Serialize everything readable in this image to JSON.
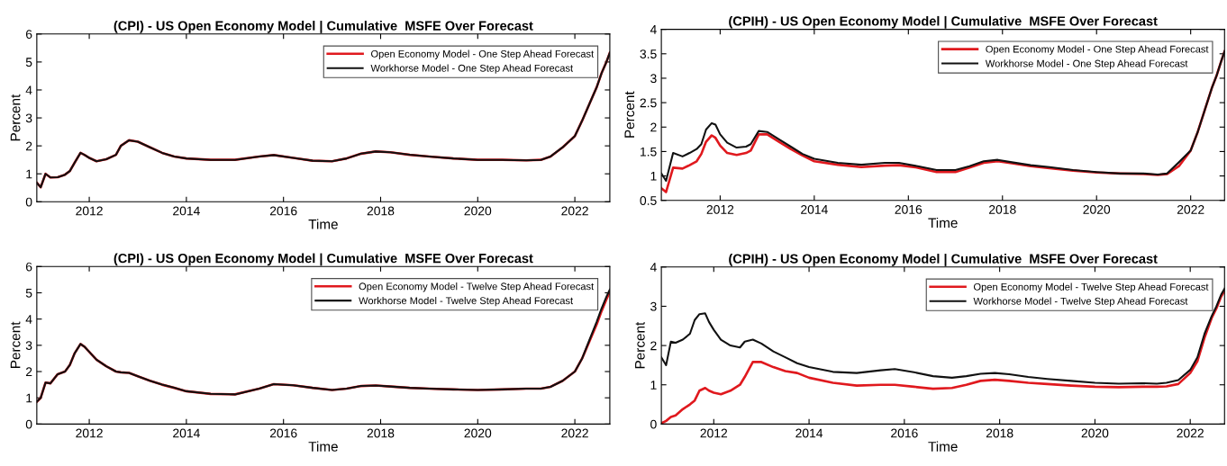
{
  "chart_data": [
    {
      "type": "line",
      "title": "(CPI) - US Open Economy Model | Cumulative  MSFE Over Forecast",
      "xlabel": "Time",
      "ylabel": "Percent",
      "legend": "top right",
      "x": [
        2010.92,
        2011.0,
        2011.1,
        2011.2,
        2011.35,
        2011.5,
        2011.6,
        2011.7,
        2011.82,
        2011.9,
        2012.0,
        2012.15,
        2012.35,
        2012.55,
        2012.65,
        2012.82,
        2013.0,
        2013.25,
        2013.5,
        2013.75,
        2014.0,
        2014.5,
        2015.0,
        2015.5,
        2015.8,
        2016.2,
        2016.6,
        2017.0,
        2017.3,
        2017.6,
        2017.9,
        2018.2,
        2018.6,
        2019.0,
        2019.5,
        2020.0,
        2020.5,
        2021.0,
        2021.3,
        2021.5,
        2021.75,
        2022.0,
        2022.15,
        2022.3,
        2022.45,
        2022.55,
        2022.65,
        2022.72
      ],
      "xlim": [
        2010.92,
        2022.72
      ],
      "xticks": [
        2012,
        2014,
        2016,
        2018,
        2020,
        2022
      ],
      "ylim": [
        0,
        6
      ],
      "yticks": [
        0,
        1,
        2,
        3,
        4,
        5,
        6
      ],
      "series": [
        {
          "name": "Open Economy Model - One Step Ahead Forecast",
          "color": "#e0191e",
          "values": [
            0.68,
            0.52,
            1.0,
            0.87,
            0.88,
            0.97,
            1.1,
            1.4,
            1.75,
            1.68,
            1.57,
            1.45,
            1.52,
            1.68,
            2.0,
            2.2,
            2.15,
            1.95,
            1.75,
            1.62,
            1.55,
            1.5,
            1.5,
            1.62,
            1.67,
            1.57,
            1.47,
            1.45,
            1.55,
            1.72,
            1.8,
            1.77,
            1.68,
            1.62,
            1.55,
            1.5,
            1.5,
            1.48,
            1.5,
            1.62,
            1.95,
            2.35,
            2.9,
            3.5,
            4.1,
            4.6,
            5.0,
            5.33
          ]
        },
        {
          "name": "Workhorse Model - One Step Ahead Forecast",
          "color": "#111111",
          "values": [
            0.68,
            0.52,
            1.0,
            0.87,
            0.88,
            0.97,
            1.1,
            1.4,
            1.75,
            1.68,
            1.57,
            1.45,
            1.52,
            1.68,
            2.0,
            2.2,
            2.15,
            1.95,
            1.75,
            1.62,
            1.55,
            1.5,
            1.5,
            1.62,
            1.67,
            1.57,
            1.47,
            1.45,
            1.55,
            1.72,
            1.8,
            1.77,
            1.68,
            1.62,
            1.55,
            1.5,
            1.5,
            1.48,
            1.5,
            1.62,
            1.95,
            2.35,
            2.9,
            3.5,
            4.1,
            4.6,
            5.0,
            5.33
          ]
        }
      ]
    },
    {
      "type": "line",
      "title": "(CPIH) - US Open Economy Model | Cumulative  MSFE Over Forecast",
      "xlabel": "Time",
      "ylabel": "Percent",
      "legend": "top right",
      "x": [
        2010.75,
        2010.85,
        2011.0,
        2011.2,
        2011.35,
        2011.5,
        2011.6,
        2011.7,
        2011.82,
        2011.9,
        2012.0,
        2012.15,
        2012.35,
        2012.55,
        2012.65,
        2012.82,
        2013.0,
        2013.25,
        2013.5,
        2013.75,
        2014.0,
        2014.5,
        2015.0,
        2015.5,
        2015.8,
        2016.2,
        2016.6,
        2017.0,
        2017.3,
        2017.6,
        2017.9,
        2018.2,
        2018.6,
        2019.0,
        2019.5,
        2020.0,
        2020.5,
        2021.0,
        2021.3,
        2021.5,
        2021.75,
        2022.0,
        2022.15,
        2022.3,
        2022.45,
        2022.55,
        2022.65,
        2022.72
      ],
      "xlim": [
        2010.75,
        2022.72
      ],
      "xticks": [
        2012,
        2014,
        2016,
        2018,
        2020,
        2022
      ],
      "ylim": [
        0.5,
        4
      ],
      "yticks": [
        0.5,
        1,
        1.5,
        2,
        2.5,
        3,
        3.5,
        4
      ],
      "series": [
        {
          "name": "Open Economy Model - One Step Ahead Forecast",
          "color": "#e0191e",
          "values": [
            0.75,
            0.67,
            1.17,
            1.15,
            1.22,
            1.3,
            1.45,
            1.7,
            1.83,
            1.78,
            1.62,
            1.47,
            1.43,
            1.47,
            1.52,
            1.85,
            1.85,
            1.7,
            1.55,
            1.42,
            1.3,
            1.23,
            1.18,
            1.21,
            1.22,
            1.17,
            1.08,
            1.08,
            1.17,
            1.27,
            1.3,
            1.26,
            1.2,
            1.16,
            1.11,
            1.07,
            1.05,
            1.04,
            1.02,
            1.04,
            1.2,
            1.52,
            1.9,
            2.35,
            2.8,
            3.05,
            3.35,
            3.55
          ]
        },
        {
          "name": "Workhorse Model - One Step Ahead Forecast",
          "color": "#111111",
          "values": [
            1.05,
            0.9,
            1.47,
            1.4,
            1.47,
            1.55,
            1.65,
            1.95,
            2.08,
            2.05,
            1.85,
            1.68,
            1.58,
            1.6,
            1.65,
            1.92,
            1.9,
            1.75,
            1.6,
            1.45,
            1.35,
            1.27,
            1.23,
            1.27,
            1.27,
            1.2,
            1.12,
            1.12,
            1.2,
            1.3,
            1.33,
            1.28,
            1.22,
            1.18,
            1.12,
            1.08,
            1.05,
            1.05,
            1.03,
            1.05,
            1.28,
            1.52,
            1.9,
            2.35,
            2.8,
            3.05,
            3.35,
            3.55
          ]
        }
      ]
    },
    {
      "type": "line",
      "title": "(CPI) - US Open Economy Model | Cumulative  MSFE Over Forecast",
      "xlabel": "Time",
      "ylabel": "Percent",
      "legend": "top right",
      "x": [
        2010.92,
        2011.0,
        2011.1,
        2011.2,
        2011.35,
        2011.5,
        2011.6,
        2011.7,
        2011.82,
        2011.9,
        2012.0,
        2012.15,
        2012.35,
        2012.55,
        2012.65,
        2012.82,
        2013.0,
        2013.25,
        2013.5,
        2013.75,
        2014.0,
        2014.5,
        2015.0,
        2015.5,
        2015.8,
        2016.2,
        2016.6,
        2017.0,
        2017.3,
        2017.6,
        2017.9,
        2018.2,
        2018.6,
        2019.0,
        2019.5,
        2020.0,
        2020.5,
        2021.0,
        2021.3,
        2021.5,
        2021.75,
        2022.0,
        2022.15,
        2022.3,
        2022.45,
        2022.55,
        2022.65,
        2022.72
      ],
      "xlim": [
        2010.92,
        2022.72
      ],
      "xticks": [
        2012,
        2014,
        2016,
        2018,
        2020,
        2022
      ],
      "ylim": [
        0,
        6
      ],
      "yticks": [
        0,
        1,
        2,
        3,
        4,
        5,
        6
      ],
      "series": [
        {
          "name": "Open Economy Model - Twelve Step Ahead Forecast",
          "color": "#e0191e",
          "values": [
            0.85,
            1.0,
            1.58,
            1.55,
            1.9,
            2.0,
            2.25,
            2.7,
            3.05,
            2.95,
            2.75,
            2.45,
            2.2,
            2.0,
            1.97,
            1.95,
            1.82,
            1.65,
            1.5,
            1.38,
            1.25,
            1.15,
            1.13,
            1.35,
            1.52,
            1.48,
            1.38,
            1.3,
            1.35,
            1.45,
            1.47,
            1.43,
            1.38,
            1.35,
            1.32,
            1.3,
            1.32,
            1.35,
            1.35,
            1.42,
            1.65,
            2.0,
            2.5,
            3.15,
            3.8,
            4.3,
            4.75,
            5.05
          ]
        },
        {
          "name": "Workhorse Model - Twelve Step Ahead Forecast",
          "color": "#111111",
          "values": [
            0.85,
            1.0,
            1.58,
            1.55,
            1.9,
            2.0,
            2.25,
            2.7,
            3.05,
            2.95,
            2.75,
            2.45,
            2.2,
            2.0,
            1.97,
            1.95,
            1.82,
            1.65,
            1.5,
            1.38,
            1.25,
            1.15,
            1.13,
            1.35,
            1.52,
            1.48,
            1.38,
            1.3,
            1.35,
            1.45,
            1.47,
            1.43,
            1.38,
            1.35,
            1.32,
            1.3,
            1.32,
            1.35,
            1.35,
            1.42,
            1.65,
            2.0,
            2.5,
            3.2,
            3.9,
            4.4,
            4.85,
            5.12
          ]
        }
      ]
    },
    {
      "type": "line",
      "title": "(CPIH) - US Open Economy Model | Cumulative  MSFE Over Forecast",
      "xlabel": "Time",
      "ylabel": "Percent",
      "legend": "top right",
      "x": [
        2010.9,
        2011.0,
        2011.1,
        2011.2,
        2011.35,
        2011.5,
        2011.6,
        2011.7,
        2011.82,
        2011.9,
        2012.0,
        2012.15,
        2012.35,
        2012.55,
        2012.65,
        2012.82,
        2013.0,
        2013.25,
        2013.5,
        2013.75,
        2014.0,
        2014.5,
        2015.0,
        2015.5,
        2015.8,
        2016.2,
        2016.6,
        2017.0,
        2017.3,
        2017.6,
        2017.9,
        2018.2,
        2018.6,
        2019.0,
        2019.5,
        2020.0,
        2020.5,
        2021.0,
        2021.3,
        2021.5,
        2021.75,
        2022.0,
        2022.15,
        2022.3,
        2022.45,
        2022.55,
        2022.65,
        2022.72
      ],
      "xlim": [
        2010.9,
        2022.72
      ],
      "xticks": [
        2012,
        2014,
        2016,
        2018,
        2020,
        2022
      ],
      "ylim": [
        0,
        4
      ],
      "yticks": [
        0,
        1,
        2,
        3,
        4
      ],
      "series": [
        {
          "name": "Open Economy Model - Twelve Step Ahead Forecast",
          "color": "#e0191e",
          "values": [
            0.02,
            0.08,
            0.18,
            0.22,
            0.38,
            0.5,
            0.6,
            0.85,
            0.92,
            0.85,
            0.8,
            0.76,
            0.85,
            1.0,
            1.2,
            1.58,
            1.58,
            1.45,
            1.35,
            1.3,
            1.18,
            1.05,
            0.98,
            1.0,
            1.0,
            0.95,
            0.9,
            0.92,
            1.0,
            1.1,
            1.13,
            1.1,
            1.05,
            1.02,
            0.98,
            0.95,
            0.94,
            0.95,
            0.95,
            0.96,
            1.02,
            1.3,
            1.6,
            2.2,
            2.7,
            2.95,
            3.25,
            3.4
          ]
        },
        {
          "name": "Workhorse Model - Twelve Step Ahead Forecast",
          "color": "#111111",
          "values": [
            1.7,
            1.5,
            2.1,
            2.07,
            2.15,
            2.3,
            2.65,
            2.8,
            2.82,
            2.6,
            2.4,
            2.15,
            2.0,
            1.95,
            2.1,
            2.15,
            2.05,
            1.85,
            1.7,
            1.55,
            1.45,
            1.33,
            1.3,
            1.37,
            1.4,
            1.32,
            1.22,
            1.18,
            1.22,
            1.28,
            1.3,
            1.27,
            1.2,
            1.15,
            1.1,
            1.05,
            1.03,
            1.04,
            1.03,
            1.05,
            1.12,
            1.38,
            1.7,
            2.3,
            2.75,
            3.0,
            3.3,
            3.45
          ]
        }
      ]
    }
  ]
}
